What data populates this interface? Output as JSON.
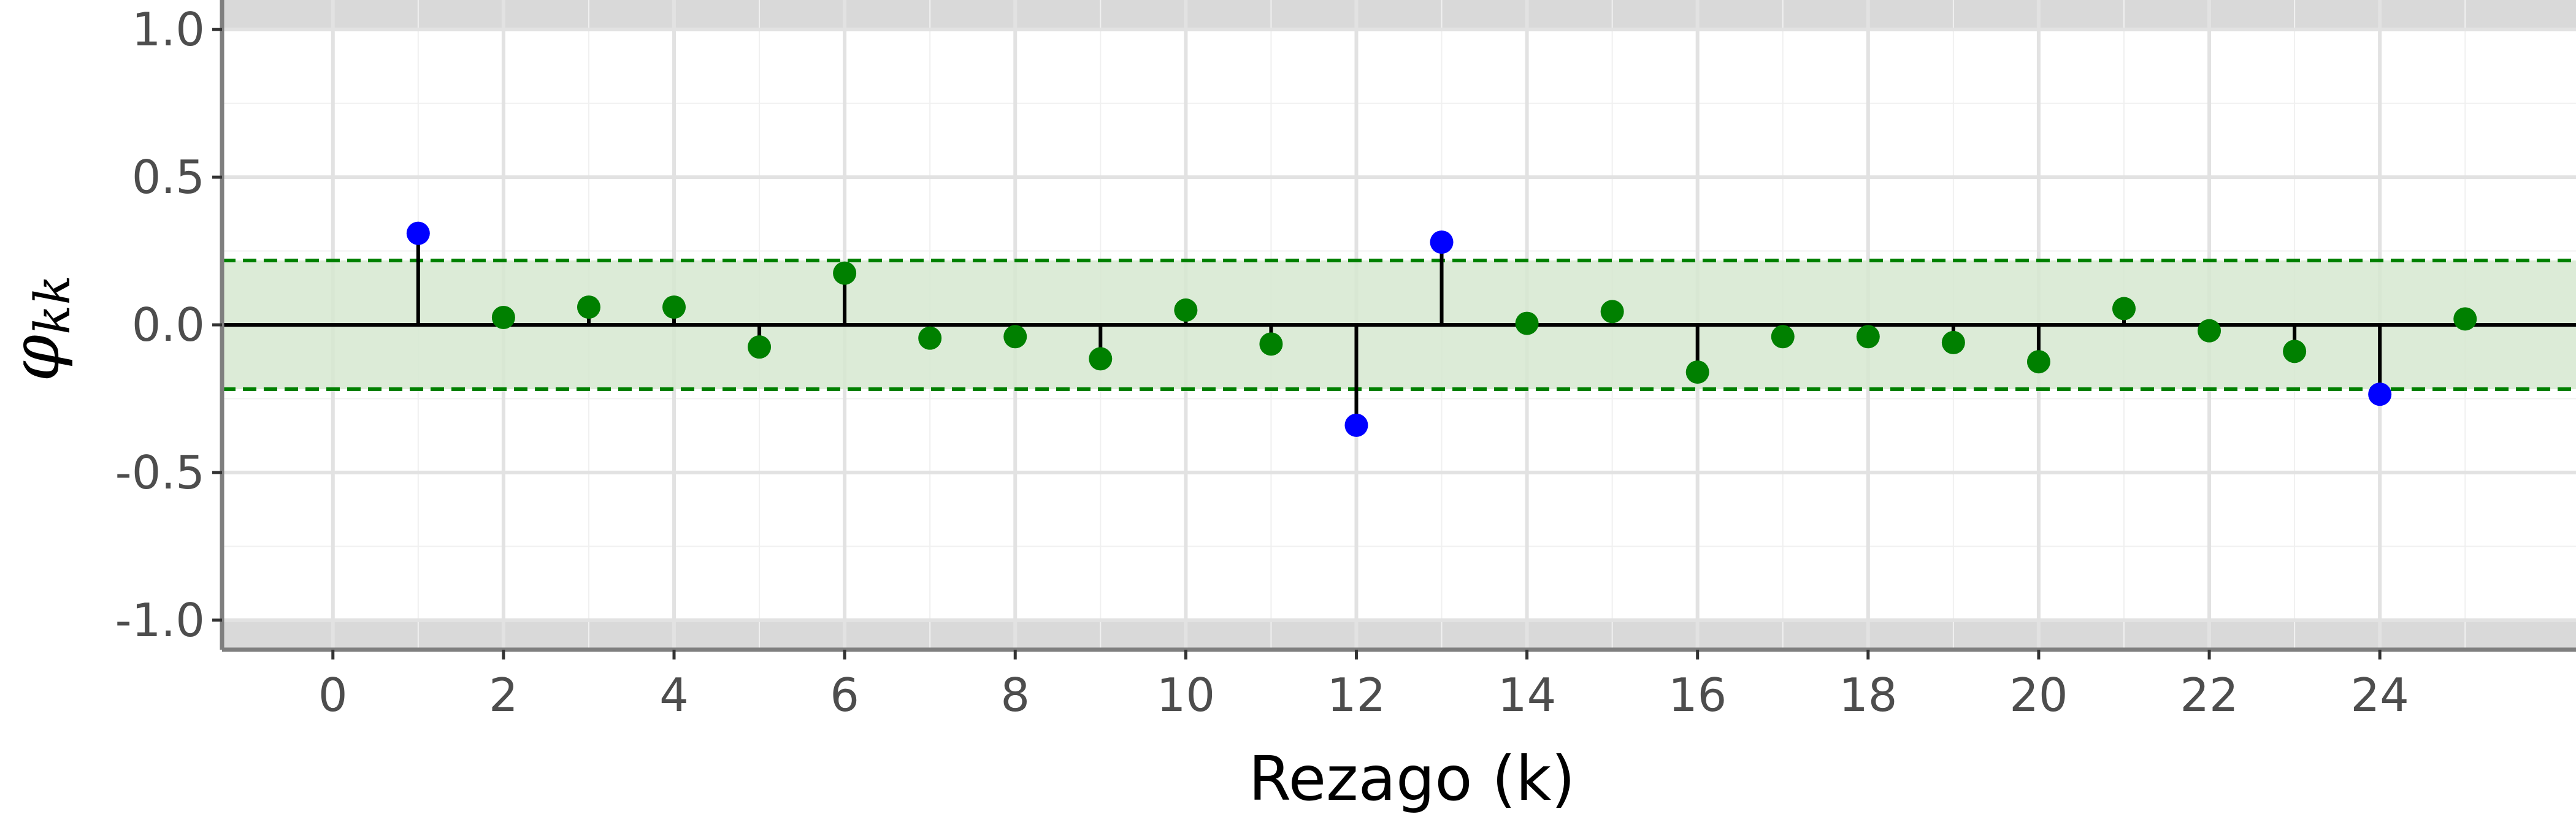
{
  "chart_data": {
    "type": "scatter",
    "subtype": "lollipop-pacf",
    "xlabel": "Rezago (k)",
    "ylabel_main": "φ",
    "ylabel_sub": "kk",
    "x": [
      1,
      2,
      3,
      4,
      5,
      6,
      7,
      8,
      9,
      10,
      11,
      12,
      13,
      14,
      15,
      16,
      17,
      18,
      19,
      20,
      21,
      22,
      23,
      24,
      25
    ],
    "values": [
      0.31,
      0.025,
      0.06,
      0.06,
      -0.075,
      0.175,
      -0.045,
      -0.04,
      -0.115,
      0.05,
      -0.065,
      -0.34,
      0.28,
      0.005,
      0.045,
      -0.16,
      -0.04,
      -0.04,
      -0.06,
      -0.125,
      0.055,
      -0.02,
      -0.09,
      -0.235,
      0.02
    ],
    "confidence_band": [
      -0.218,
      0.218
    ],
    "xlim": [
      -1.3,
      26.3
    ],
    "ylim": [
      -1.1,
      1.1
    ],
    "x_ticks": [
      "0",
      "2",
      "4",
      "6",
      "8",
      "10",
      "12",
      "14",
      "16",
      "18",
      "20",
      "22",
      "24"
    ],
    "y_ticks": [
      "1.0",
      "0.5",
      "0.0",
      "-0.5",
      "-1.0"
    ],
    "grid": true,
    "colors": {
      "significant": "#0000ff",
      "not_significant": "#008000",
      "band_fill": "#d6e8d0",
      "band_line": "#008000",
      "outside_band": "#d9d9d9",
      "stem": "#000000"
    }
  }
}
